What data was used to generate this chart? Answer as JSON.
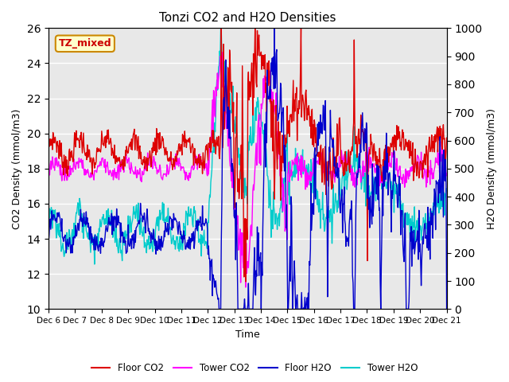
{
  "title": "Tonzi CO2 and H2O Densities",
  "xlabel": "Time",
  "ylabel_left": "CO2 Density (mmol/m3)",
  "ylabel_right": "H2O Density (mmol/m3)",
  "annotation": "TZ_mixed",
  "annotation_color": "#cc0000",
  "annotation_bg": "#ffffcc",
  "annotation_border": "#cc8800",
  "ylim_left": [
    10,
    26
  ],
  "ylim_right": [
    0,
    1000
  ],
  "yticks_left": [
    10,
    12,
    14,
    16,
    18,
    20,
    22,
    24,
    26
  ],
  "yticks_right": [
    0,
    100,
    200,
    300,
    400,
    500,
    600,
    700,
    800,
    900,
    1000
  ],
  "xtick_labels": [
    "Dec 6",
    "Dec 7",
    "Dec 8",
    "Dec 9",
    "Dec 10",
    "Dec 11",
    "Dec 12",
    "Dec 13",
    "Dec 14",
    "Dec 15",
    "Dec 16",
    "Dec 17",
    "Dec 18",
    "Dec 19",
    "Dec 20",
    "Dec 21"
  ],
  "n_days": 15,
  "pts_per_day": 48,
  "floor_co2_color": "#dd0000",
  "tower_co2_color": "#ff00ff",
  "floor_h2o_color": "#0000cc",
  "tower_h2o_color": "#00cccc",
  "legend_labels": [
    "Floor CO2",
    "Tower CO2",
    "Floor H2O",
    "Tower H2O"
  ],
  "bg_color": "#e8e8e8",
  "grid_color": "#ffffff",
  "linewidth": 1.0,
  "figsize": [
    6.4,
    4.8
  ],
  "dpi": 100
}
